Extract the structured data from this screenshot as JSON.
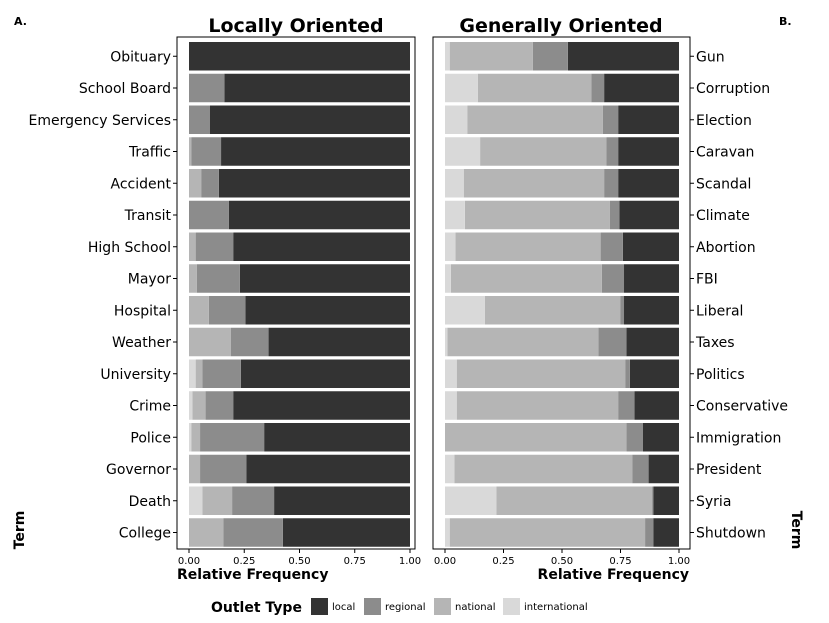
{
  "chart_data": [
    {
      "type": "bar",
      "orientation": "horizontal",
      "stacked": true,
      "panel_letter": "A.",
      "title": "Locally Oriented",
      "xlabel": "Relative Frequency",
      "ylabel": "Term",
      "xlim": [
        0,
        1
      ],
      "x_ticks": [
        "0.00",
        "0.25",
        "0.50",
        "0.75",
        "1.00"
      ],
      "y_axis_side": "left",
      "categories": [
        "Obituary",
        "School Board",
        "Emergency Services",
        "Traffic",
        "Accident",
        "Transit",
        "High School",
        "Mayor",
        "Hospital",
        "Weather",
        "University",
        "Crime",
        "Police",
        "Governor",
        "Death",
        "College"
      ],
      "series": [
        {
          "name": "international",
          "values": [
            0.0,
            0.0,
            0.0,
            0.0,
            0.0,
            0.0,
            0.0,
            0.0,
            0.0,
            0.0,
            0.03,
            0.015,
            0.01,
            0.0,
            0.06,
            0.0
          ]
        },
        {
          "name": "national",
          "values": [
            0.0,
            0.0,
            0.0,
            0.01,
            0.055,
            0.0,
            0.03,
            0.035,
            0.09,
            0.19,
            0.03,
            0.06,
            0.04,
            0.05,
            0.135,
            0.155
          ]
        },
        {
          "name": "regional",
          "values": [
            0.0,
            0.16,
            0.095,
            0.135,
            0.08,
            0.18,
            0.17,
            0.195,
            0.165,
            0.17,
            0.175,
            0.125,
            0.29,
            0.21,
            0.19,
            0.27
          ]
        },
        {
          "name": "local",
          "values": [
            1.0,
            0.84,
            0.905,
            0.855,
            0.865,
            0.82,
            0.8,
            0.77,
            0.745,
            0.64,
            0.765,
            0.8,
            0.66,
            0.74,
            0.615,
            0.575
          ]
        }
      ]
    },
    {
      "type": "bar",
      "orientation": "horizontal",
      "stacked": true,
      "panel_letter": "B.",
      "title": "Generally Oriented",
      "xlabel": "Relative Frequency",
      "ylabel": "Term",
      "xlim": [
        0,
        1
      ],
      "x_ticks": [
        "0.00",
        "0.25",
        "0.50",
        "0.75",
        "1.00"
      ],
      "y_axis_side": "right",
      "categories": [
        "Gun",
        "Corruption",
        "Election",
        "Caravan",
        "Scandal",
        "Climate",
        "Abortion",
        "FBI",
        "Liberal",
        "Taxes",
        "Politics",
        "Conservative",
        "Immigration",
        "President",
        "Syria",
        "Shutdown"
      ],
      "series": [
        {
          "name": "international",
          "values": [
            0.02,
            0.14,
            0.095,
            0.15,
            0.08,
            0.085,
            0.045,
            0.025,
            0.17,
            0.01,
            0.05,
            0.05,
            0.0,
            0.04,
            0.22,
            0.02
          ]
        },
        {
          "name": "national",
          "values": [
            0.355,
            0.485,
            0.58,
            0.54,
            0.6,
            0.62,
            0.62,
            0.645,
            0.58,
            0.645,
            0.72,
            0.69,
            0.775,
            0.76,
            0.665,
            0.835
          ]
        },
        {
          "name": "regional",
          "values": [
            0.15,
            0.055,
            0.065,
            0.05,
            0.06,
            0.04,
            0.095,
            0.095,
            0.015,
            0.12,
            0.02,
            0.07,
            0.07,
            0.07,
            0.005,
            0.035
          ]
        },
        {
          "name": "local",
          "values": [
            0.475,
            0.32,
            0.26,
            0.26,
            0.26,
            0.255,
            0.24,
            0.235,
            0.235,
            0.225,
            0.21,
            0.19,
            0.155,
            0.13,
            0.11,
            0.11
          ]
        }
      ]
    }
  ],
  "legend": {
    "title": "Outlet Type",
    "placement": "bottom",
    "items": [
      {
        "name": "local",
        "color": "#333333"
      },
      {
        "name": "regional",
        "color": "#8c8c8c"
      },
      {
        "name": "national",
        "color": "#b5b5b5"
      },
      {
        "name": "international",
        "color": "#d9d9d9"
      }
    ]
  }
}
